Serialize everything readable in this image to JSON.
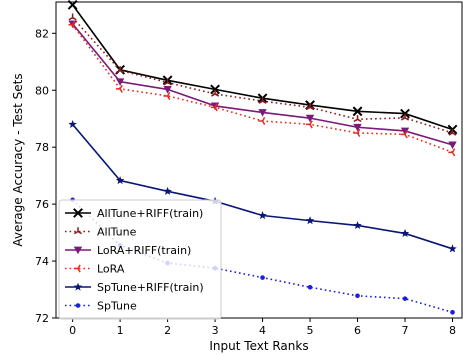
{
  "chart_data": {
    "type": "line",
    "title": "",
    "xlabel": "Input Text Ranks",
    "ylabel": "Average Accuracy - Test Sets",
    "x": [
      0,
      1,
      2,
      3,
      4,
      5,
      6,
      7,
      8
    ],
    "xticks": [
      "0",
      "1",
      "2",
      "3",
      "4",
      "5",
      "6",
      "7",
      "8"
    ],
    "yticks": [
      "72",
      "74",
      "76",
      "78",
      "80",
      "82"
    ],
    "xlim": [
      -0.35,
      8.2
    ],
    "ylim": [
      72,
      83.1
    ],
    "grid": false,
    "legend_position": "lower-left",
    "series": [
      {
        "name": "AllTune+RIFF(train)",
        "color": "#000000",
        "dash": "solid",
        "marker": "x",
        "values": [
          83.0,
          80.72,
          80.35,
          80.03,
          79.72,
          79.48,
          79.26,
          79.18,
          78.62
        ]
      },
      {
        "name": "AllTune",
        "color": "#8b1a1a",
        "dash": "dotted",
        "marker": "tri_up",
        "values": [
          82.55,
          80.7,
          80.27,
          79.87,
          79.62,
          79.4,
          78.98,
          79.03,
          78.5
        ]
      },
      {
        "name": "LoRA+RIFF(train)",
        "color": "#7b1a7a",
        "dash": "solid",
        "marker": "tri_down",
        "values": [
          82.33,
          80.3,
          80.03,
          79.45,
          79.22,
          79.02,
          78.7,
          78.57,
          78.08
        ]
      },
      {
        "name": "LoRA",
        "color": "#e32b1e",
        "dash": "dotted",
        "marker": "tri_left",
        "values": [
          82.3,
          80.05,
          79.8,
          79.4,
          78.92,
          78.8,
          78.5,
          78.45,
          77.82
        ]
      },
      {
        "name": "SpTune+RIFF(train)",
        "color": "#0a1578",
        "dash": "solid",
        "marker": "star",
        "values": [
          78.8,
          76.83,
          76.45,
          76.1,
          75.6,
          75.42,
          75.25,
          74.97,
          74.43
        ]
      },
      {
        "name": "SpTune",
        "color": "#1a1fd8",
        "dash": "dotted",
        "marker": "dot",
        "values": [
          76.15,
          74.55,
          73.93,
          73.75,
          73.42,
          73.08,
          72.78,
          72.68,
          72.2
        ]
      }
    ]
  }
}
